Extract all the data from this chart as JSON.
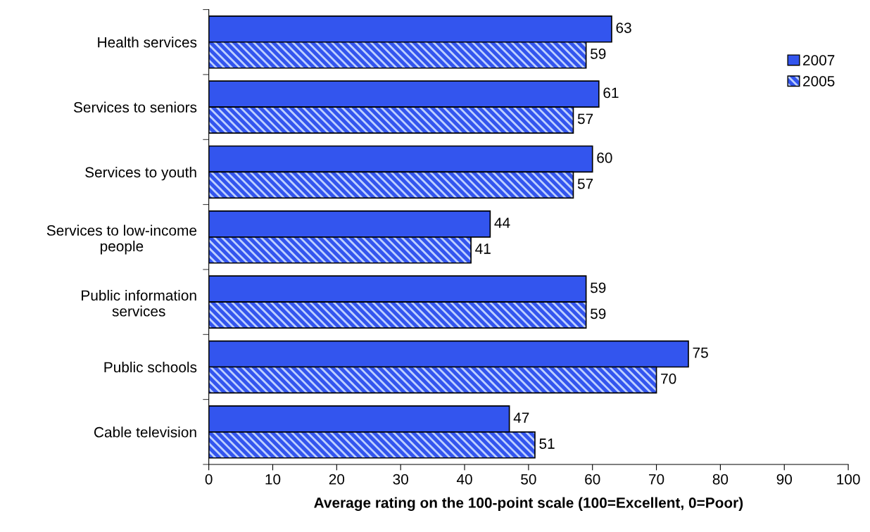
{
  "chart_data": {
    "type": "bar",
    "orientation": "horizontal",
    "categories": [
      "Health services",
      "Services to seniors",
      "Services to youth",
      "Services to low-income\npeople",
      "Public information\nservices",
      "Public schools",
      "Cable television"
    ],
    "series": [
      {
        "name": "2007",
        "color": "#3355ee",
        "values": [
          63,
          61,
          60,
          44,
          59,
          75,
          47
        ]
      },
      {
        "name": "2005",
        "color": "#3355ee",
        "values": [
          59,
          57,
          57,
          41,
          59,
          70,
          51
        ]
      }
    ],
    "xlabel": "Average rating on the 100-point scale (100=Excellent, 0=Poor)",
    "xlim": [
      0,
      100
    ],
    "xticks": [
      0,
      10,
      20,
      30,
      40,
      50,
      60,
      70,
      80,
      90,
      100
    ],
    "data_labels": true,
    "legend": "top right",
    "grid": false
  }
}
